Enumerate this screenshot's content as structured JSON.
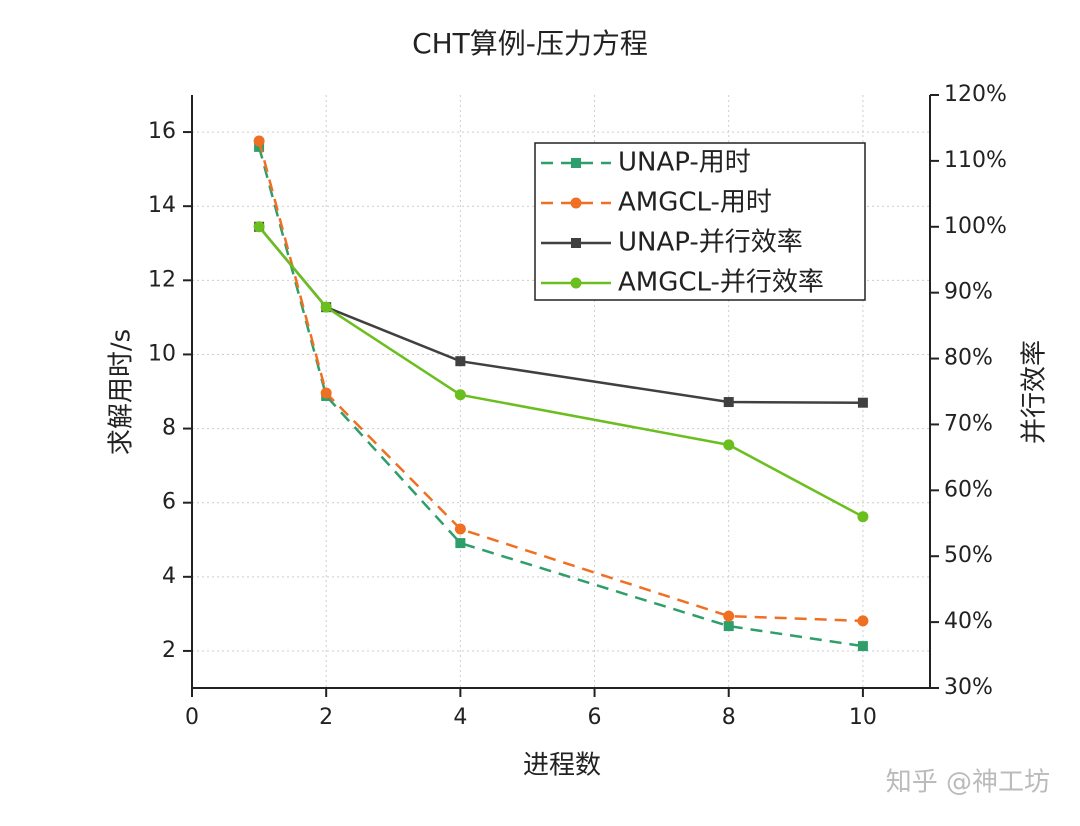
{
  "chart_data": {
    "type": "line",
    "title": "CHT算例-压力方程",
    "x_label": "进程数",
    "y_label": "求解用时/s",
    "y2_label": "并行效率",
    "watermark": "知乎 @神工坊",
    "x": [
      1,
      2,
      4,
      8,
      10
    ],
    "xlim": [
      0,
      11
    ],
    "xticks": [
      0,
      2,
      4,
      6,
      8,
      10
    ],
    "ylim": [
      1,
      17
    ],
    "yticks": [
      2,
      4,
      6,
      8,
      10,
      12,
      14,
      16
    ],
    "y2lim": [
      30,
      120
    ],
    "y2ticks": [
      {
        "value": 30,
        "label": "30%"
      },
      {
        "value": 40,
        "label": "40%"
      },
      {
        "value": 50,
        "label": "50%"
      },
      {
        "value": 60,
        "label": "60%"
      },
      {
        "value": 70,
        "label": "70%"
      },
      {
        "value": 80,
        "label": "80%"
      },
      {
        "value": 90,
        "label": "90%"
      },
      {
        "value": 100,
        "label": "100%"
      },
      {
        "value": 110,
        "label": "110%"
      },
      {
        "value": 120,
        "label": "120%"
      }
    ],
    "grid": true,
    "legend": "upper right",
    "series": [
      {
        "name": "UNAP-用时",
        "color": "#2e9e6b",
        "dashed": true,
        "marker": "square",
        "values": [
          15.6,
          8.88,
          4.91,
          2.67,
          2.13
        ]
      },
      {
        "name": "AMGCL-用时",
        "color": "#f07023",
        "dashed": true,
        "marker": "circle",
        "values": [
          15.76,
          8.96,
          5.29,
          2.94,
          2.81
        ]
      },
      {
        "name": "UNAP-并行效率",
        "color": "#404040",
        "dashed": false,
        "marker": "square",
        "axis": "y2",
        "values": [
          100,
          87.8,
          79.6,
          73.4,
          73.3
        ]
      },
      {
        "name": "AMGCL-并行效率",
        "color": "#6abf1e",
        "dashed": false,
        "marker": "circle",
        "axis": "y2",
        "values": [
          100,
          87.8,
          74.5,
          66.9,
          56.0
        ]
      }
    ]
  }
}
